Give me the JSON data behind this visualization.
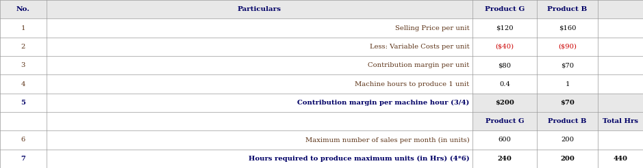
{
  "figsize": [
    9.39,
    2.46
  ],
  "dpi": 100,
  "header_bg": "#e8e8e8",
  "header_text_color": "#000066",
  "normal_text_color": "#5c3317",
  "bold_text_color": "#000066",
  "red_text_color": "#cc0000",
  "black_text_color": "#000000",
  "gray_bg": "#e8e8e8",
  "white_bg": "#ffffff",
  "line_color": "#999999",
  "n_cols": 5,
  "col_boundaries": [
    0.0,
    0.072,
    0.735,
    0.835,
    0.93,
    1.0
  ],
  "n_rows": 9,
  "rows": [
    {
      "idx": 0,
      "cells": [
        "No.",
        "Particulars",
        "Product G",
        "Product B",
        ""
      ],
      "bold": true,
      "bg": [
        "#e8e8e8",
        "#e8e8e8",
        "#e8e8e8",
        "#e8e8e8",
        "#e8e8e8"
      ],
      "colors": [
        "#000066",
        "#000066",
        "#000066",
        "#000066",
        "#000066"
      ],
      "align": [
        "center",
        "center",
        "center",
        "center",
        "center"
      ],
      "is_header": true
    },
    {
      "idx": 1,
      "cells": [
        "1",
        "Selling Price per unit",
        "$120",
        "$160",
        ""
      ],
      "bold": false,
      "bg": [
        "#ffffff",
        "#ffffff",
        "#ffffff",
        "#ffffff",
        "#ffffff"
      ],
      "colors": [
        "#5c3317",
        "#5c3317",
        "#000000",
        "#000000",
        "#000000"
      ],
      "align": [
        "center",
        "right",
        "center",
        "center",
        "center"
      ],
      "is_header": false
    },
    {
      "idx": 2,
      "cells": [
        "2",
        "Less: Variable Costs per unit",
        "($40)",
        "($90)",
        ""
      ],
      "bold": false,
      "bg": [
        "#ffffff",
        "#ffffff",
        "#ffffff",
        "#ffffff",
        "#ffffff"
      ],
      "colors": [
        "#5c3317",
        "#5c3317",
        "#cc0000",
        "#cc0000",
        "#000000"
      ],
      "align": [
        "center",
        "right",
        "center",
        "center",
        "center"
      ],
      "is_header": false
    },
    {
      "idx": 3,
      "cells": [
        "3",
        "Contribution margin per unit",
        "$80",
        "$70",
        ""
      ],
      "bold": false,
      "bg": [
        "#ffffff",
        "#ffffff",
        "#ffffff",
        "#ffffff",
        "#ffffff"
      ],
      "colors": [
        "#5c3317",
        "#5c3317",
        "#000000",
        "#000000",
        "#000000"
      ],
      "align": [
        "center",
        "right",
        "center",
        "center",
        "center"
      ],
      "is_header": false
    },
    {
      "idx": 4,
      "cells": [
        "4",
        "Machine hours to produce 1 unit",
        "0.4",
        "1",
        ""
      ],
      "bold": false,
      "bg": [
        "#ffffff",
        "#ffffff",
        "#ffffff",
        "#ffffff",
        "#ffffff"
      ],
      "colors": [
        "#5c3317",
        "#5c3317",
        "#000000",
        "#000000",
        "#000000"
      ],
      "align": [
        "center",
        "right",
        "center",
        "center",
        "center"
      ],
      "is_header": false
    },
    {
      "idx": 5,
      "cells": [
        "5",
        "Contribution margin per machine hour (3/4)",
        "$200",
        "$70",
        ""
      ],
      "bold": true,
      "bg": [
        "#ffffff",
        "#ffffff",
        "#e8e8e8",
        "#e8e8e8",
        "#e8e8e8"
      ],
      "colors": [
        "#000066",
        "#000066",
        "#000000",
        "#000000",
        "#000000"
      ],
      "align": [
        "center",
        "right",
        "center",
        "center",
        "center"
      ],
      "is_header": false
    },
    {
      "idx": 6,
      "cells": [
        "",
        "",
        "Product G",
        "Product B",
        "Total Hrs"
      ],
      "bold": true,
      "bg": [
        "#ffffff",
        "#ffffff",
        "#e8e8e8",
        "#e8e8e8",
        "#e8e8e8"
      ],
      "colors": [
        "#000000",
        "#000000",
        "#000066",
        "#000066",
        "#000066"
      ],
      "align": [
        "center",
        "center",
        "center",
        "center",
        "center"
      ],
      "is_header": false
    },
    {
      "idx": 7,
      "cells": [
        "6",
        "Maximum number of sales per month (in units)",
        "600",
        "200",
        ""
      ],
      "bold": false,
      "bg": [
        "#ffffff",
        "#ffffff",
        "#ffffff",
        "#ffffff",
        "#ffffff"
      ],
      "colors": [
        "#5c3317",
        "#5c3317",
        "#000000",
        "#000000",
        "#000000"
      ],
      "align": [
        "center",
        "right",
        "center",
        "center",
        "center"
      ],
      "is_header": false
    },
    {
      "idx": 8,
      "cells": [
        "7",
        "Hours required to produce maximum units (in Hrs) (4*6)",
        "240",
        "200",
        "440"
      ],
      "bold": true,
      "bg": [
        "#ffffff",
        "#ffffff",
        "#ffffff",
        "#ffffff",
        "#ffffff"
      ],
      "colors": [
        "#000066",
        "#000066",
        "#000000",
        "#000000",
        "#000000"
      ],
      "align": [
        "center",
        "right",
        "center",
        "center",
        "center"
      ],
      "is_header": false
    }
  ]
}
